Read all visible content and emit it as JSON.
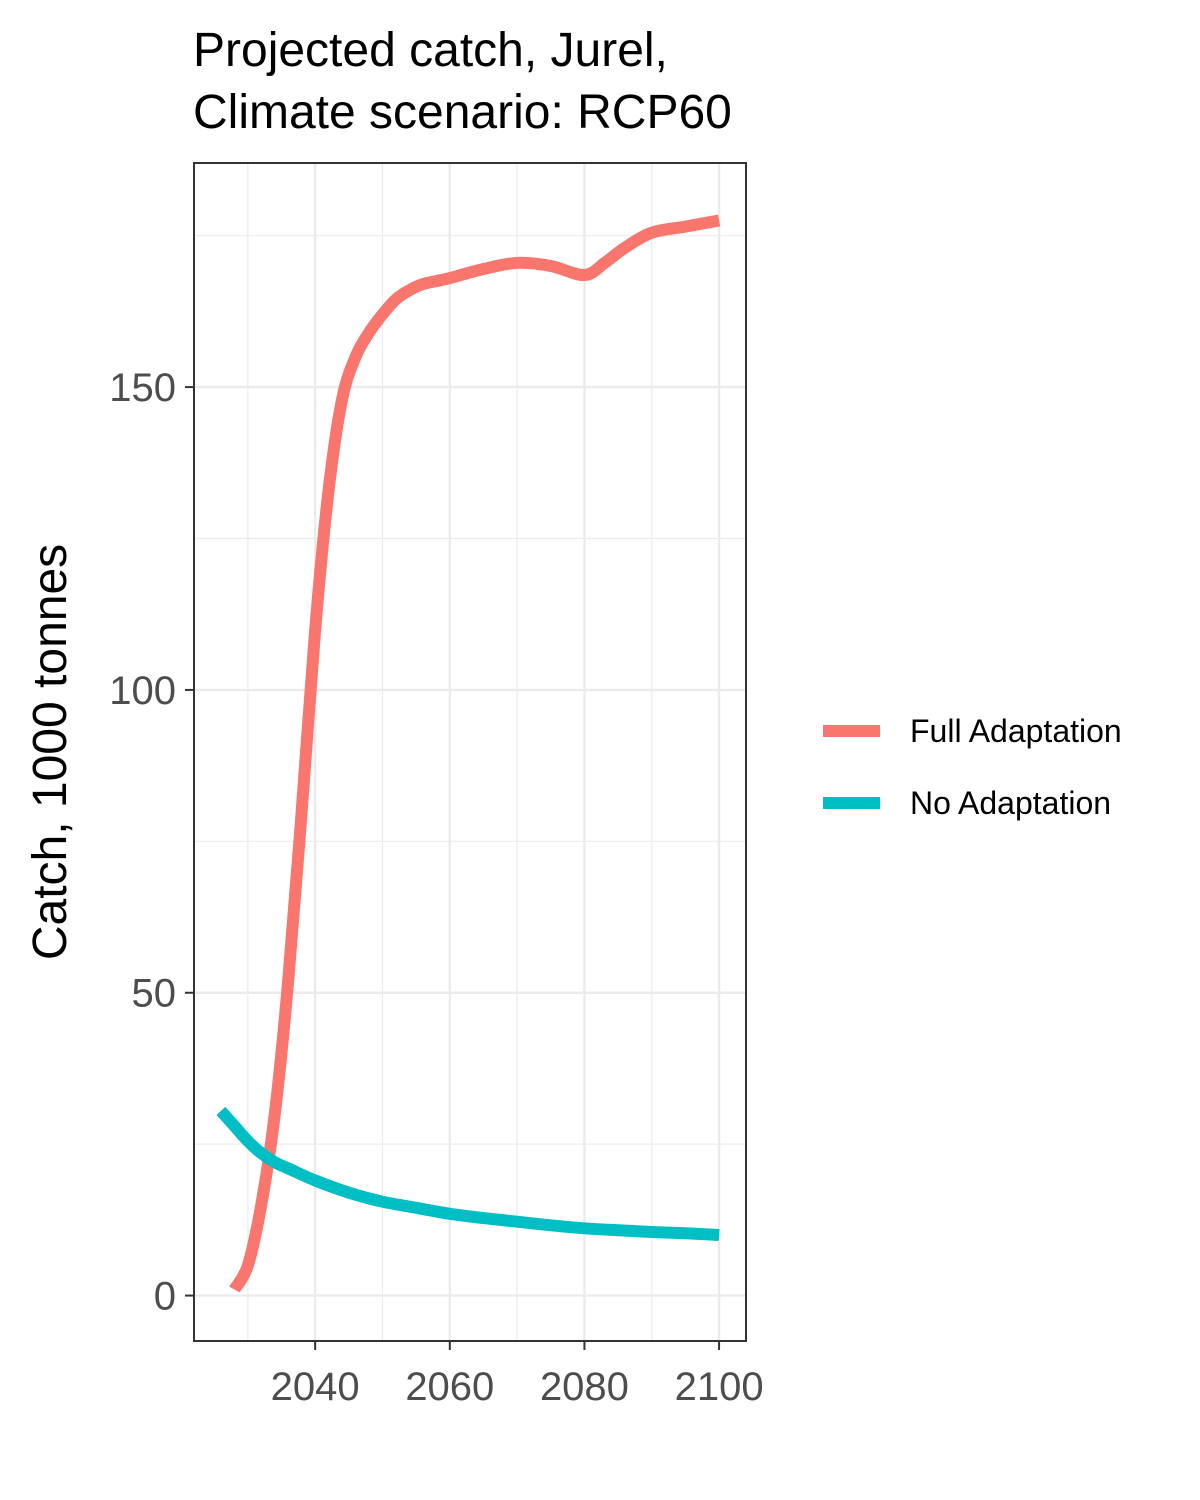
{
  "chart_data": {
    "type": "line",
    "title_lines": [
      "Projected catch, Jurel,",
      "Climate scenario: RCP60"
    ],
    "xlabel": "",
    "ylabel": "Catch, 1000 tonnes",
    "xlim": [
      2022,
      2104
    ],
    "ylim": [
      -7.5,
      187
    ],
    "x_ticks": [
      2040,
      2060,
      2080,
      2100
    ],
    "y_ticks": [
      0,
      50,
      100,
      150
    ],
    "x_minor": [
      2030,
      2050,
      2070,
      2090
    ],
    "y_minor": [
      25,
      75,
      125,
      175
    ],
    "grid": true,
    "legend_position": "right",
    "series": [
      {
        "name": "Full Adaptation",
        "color": "#F8766D",
        "x": [
          2028,
          2030,
          2032,
          2034,
          2036,
          2038,
          2040,
          2042,
          2044,
          2046,
          2048,
          2050,
          2052,
          2054,
          2056,
          2058,
          2060,
          2065,
          2070,
          2075,
          2080,
          2083,
          2086,
          2090,
          2095,
          2100
        ],
        "y": [
          1,
          5,
          15,
          30,
          52,
          80,
          110,
          133,
          148,
          155,
          159,
          162,
          164.5,
          166,
          167,
          167.5,
          168,
          169.5,
          170.5,
          170,
          168.5,
          170.5,
          173,
          175.5,
          176.5,
          177.5
        ]
      },
      {
        "name": "No Adaptation",
        "color": "#00BFC4",
        "x": [
          2026,
          2028,
          2030,
          2032,
          2034,
          2036,
          2040,
          2045,
          2050,
          2055,
          2060,
          2065,
          2070,
          2075,
          2080,
          2085,
          2090,
          2095,
          2100
        ],
        "y": [
          30.5,
          28,
          25.5,
          23.5,
          22,
          21,
          19,
          17,
          15.5,
          14.5,
          13.5,
          12.8,
          12.2,
          11.6,
          11.1,
          10.8,
          10.5,
          10.3,
          10
        ]
      }
    ]
  }
}
